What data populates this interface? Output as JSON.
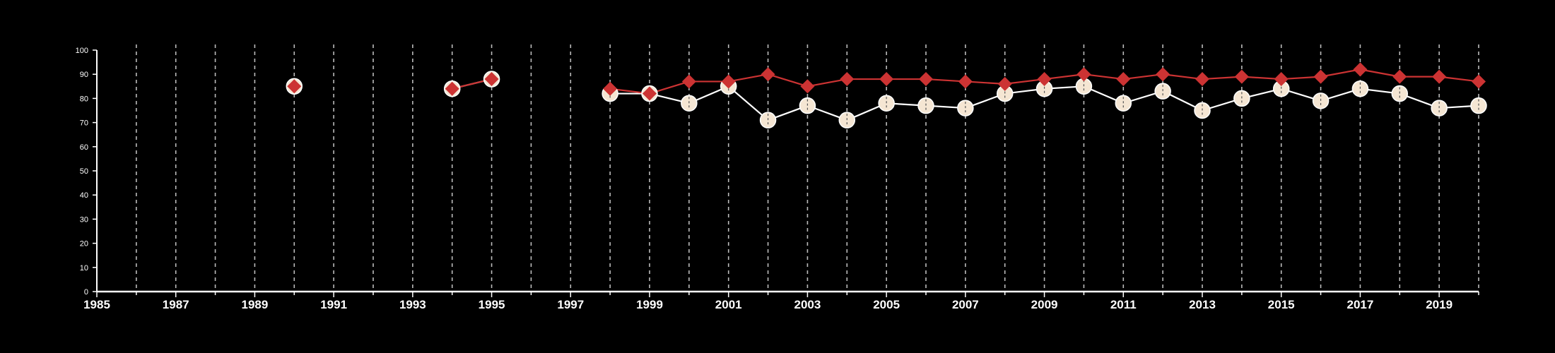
{
  "chart_data": {
    "type": "line",
    "title": "",
    "xlabel": "",
    "ylabel": "",
    "xlim": [
      1985,
      2020
    ],
    "ylim": [
      0,
      100
    ],
    "x_ticks": [
      1985,
      1987,
      1989,
      1991,
      1993,
      1995,
      1997,
      1999,
      2001,
      2003,
      2005,
      2007,
      2009,
      2011,
      2013,
      2015,
      2017,
      2019
    ],
    "y_ticks": [
      0,
      10,
      20,
      30,
      40,
      50,
      60,
      70,
      80,
      90,
      100
    ],
    "vertical_grid": "dashed, every year from 1986 to 2020",
    "legend": "none",
    "x": [
      1985,
      1986,
      1987,
      1988,
      1989,
      1990,
      1991,
      1992,
      1993,
      1994,
      1995,
      1996,
      1997,
      1998,
      1999,
      2000,
      2001,
      2002,
      2003,
      2004,
      2005,
      2006,
      2007,
      2008,
      2009,
      2010,
      2011,
      2012,
      2013,
      2014,
      2015,
      2016,
      2017,
      2018,
      2019,
      2020
    ],
    "series": [
      {
        "marker": "circle",
        "color": "#f5e6d3",
        "line_color": "#ffffff",
        "values": [
          null,
          null,
          null,
          null,
          null,
          85,
          null,
          null,
          null,
          84,
          88,
          null,
          null,
          82,
          82,
          78,
          85,
          71,
          77,
          71,
          78,
          77,
          76,
          82,
          84,
          85,
          78,
          83,
          75,
          80,
          84,
          79,
          84,
          82,
          76,
          77
        ]
      },
      {
        "marker": "diamond",
        "color": "#cc3333",
        "line_color": "#cc3333",
        "values": [
          null,
          null,
          null,
          null,
          null,
          85,
          null,
          null,
          null,
          84,
          88,
          null,
          null,
          84,
          82,
          87,
          87,
          90,
          85,
          88,
          88,
          88,
          87,
          86,
          88,
          90,
          88,
          90,
          88,
          89,
          88,
          89,
          92,
          89,
          89,
          87
        ]
      }
    ]
  }
}
